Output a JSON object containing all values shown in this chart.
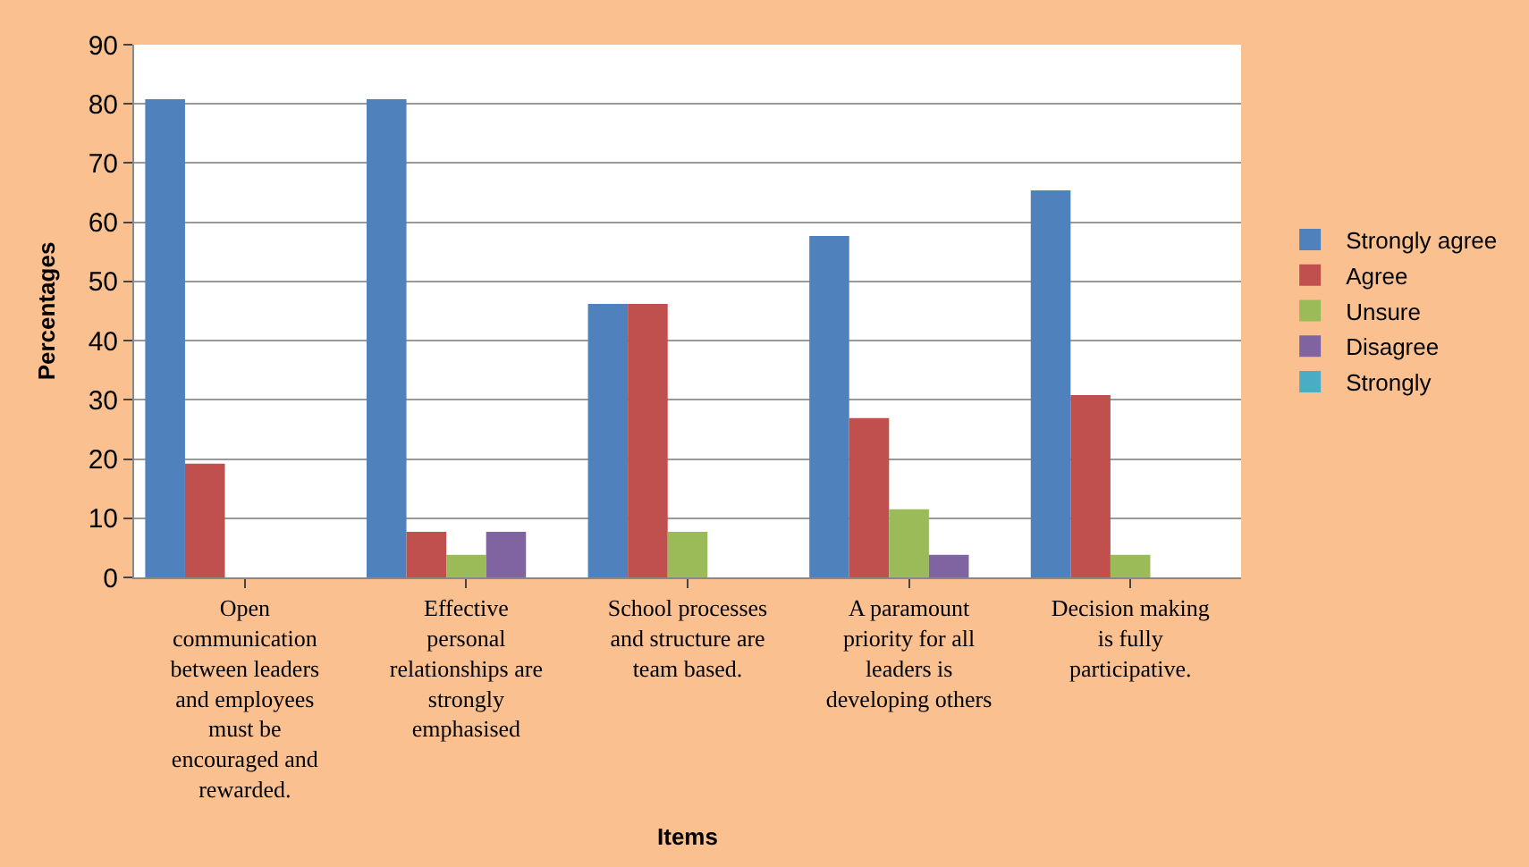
{
  "chart_data": {
    "type": "bar",
    "xlabel": "Items",
    "ylabel": "Percentages",
    "categories": [
      "Open communication between leaders and employees must be encouraged and rewarded.",
      "Effective personal relationships are strongly emphasised",
      "School processes and structure are team based.",
      "A paramount priority for all leaders is developing others",
      "Decision making is fully participative."
    ],
    "series": [
      {
        "name": "Strongly agree",
        "color": "#4f81bd",
        "values": [
          80.8,
          80.8,
          46.2,
          57.7,
          65.4
        ]
      },
      {
        "name": "Agree",
        "color": "#c0504d",
        "values": [
          19.2,
          7.7,
          46.2,
          26.9,
          30.8
        ]
      },
      {
        "name": "Unsure",
        "color": "#9bbb59",
        "values": [
          null,
          3.8,
          7.7,
          11.5,
          3.8
        ]
      },
      {
        "name": "Disagree",
        "color": "#8064a2",
        "values": [
          null,
          7.7,
          null,
          3.8,
          null
        ]
      },
      {
        "name": "Strongly",
        "color": "#4bacc6",
        "values": [
          null,
          null,
          null,
          null,
          null
        ]
      }
    ],
    "ylim": [
      0,
      90
    ],
    "yticks": [
      0,
      10,
      20,
      30,
      40,
      50,
      60,
      70,
      80,
      90
    ],
    "grid": "y",
    "legend": "right"
  }
}
